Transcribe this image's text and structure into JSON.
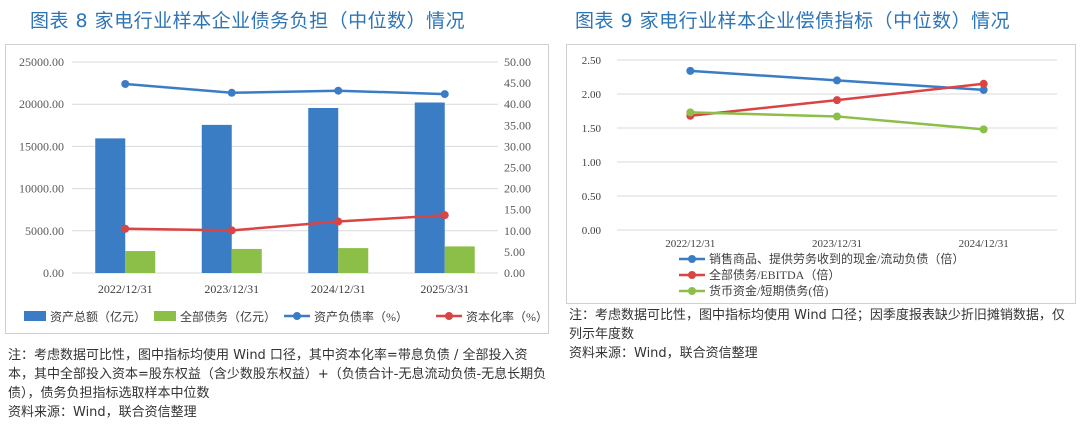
{
  "titles": {
    "left": "图表 8    家电行业样本企业债务负担（中位数）情况",
    "right": "图表 9    家电行业样本企业偿债指标（中位数）情况"
  },
  "colors": {
    "blue": "#3b7dc4",
    "green": "#8cbf48",
    "red": "#d94545",
    "title": "#2e75b6"
  },
  "chart_data": [
    {
      "type": "bar",
      "categories": [
        "2022/12/31",
        "2023/12/31",
        "2024/12/31",
        "2025/3/31"
      ],
      "series": [
        {
          "name": "资产总额（亿元）",
          "kind": "bar",
          "axis": "left",
          "color": "#3b7dc4",
          "values": [
            15950,
            17550,
            19550,
            20200
          ]
        },
        {
          "name": "全部债务（亿元）",
          "kind": "bar",
          "axis": "left",
          "color": "#8cbf48",
          "values": [
            2600,
            2850,
            2950,
            3150
          ]
        },
        {
          "name": "资产负债率（%）",
          "kind": "line",
          "axis": "right",
          "color": "#3b7dc4",
          "values": [
            44.8,
            42.7,
            43.2,
            42.4
          ]
        },
        {
          "name": "资本化率（%）",
          "kind": "line",
          "axis": "right",
          "color": "#d94545",
          "values": [
            10.5,
            10.1,
            12.2,
            13.7
          ]
        }
      ],
      "ylim_left": [
        0,
        25000
      ],
      "ylim_right": [
        0,
        50
      ],
      "yticks_left": [
        "0.00",
        "5000.00",
        "10000.00",
        "15000.00",
        "20000.00",
        "25000.00"
      ],
      "yticks_right": [
        "0.00",
        "5.00",
        "10.00",
        "15.00",
        "20.00",
        "25.00",
        "30.00",
        "35.00",
        "40.00",
        "45.00",
        "50.00"
      ],
      "legend_position": "bottom",
      "grid": true
    },
    {
      "type": "line",
      "categories": [
        "2022/12/31",
        "2023/12/31",
        "2024/12/31"
      ],
      "series": [
        {
          "name": "销售商品、提供劳务收到的现金/流动负债（倍）",
          "color": "#3b7dc4",
          "values": [
            2.34,
            2.2,
            2.06
          ]
        },
        {
          "name": "全部债务/EBITDA（倍）",
          "color": "#d94545",
          "values": [
            1.68,
            1.91,
            2.15
          ]
        },
        {
          "name": "货币资金/短期债务(倍)",
          "color": "#8cbf48",
          "values": [
            1.73,
            1.67,
            1.48
          ]
        }
      ],
      "ylim": [
        0,
        2.5
      ],
      "yticks": [
        "0.00",
        "0.50",
        "1.00",
        "1.50",
        "2.00",
        "2.50"
      ],
      "legend_position": "bottom",
      "grid": true
    }
  ],
  "notes": {
    "left": "注：考虑数据可比性，图中指标均使用 Wind 口径，其中资本化率=带息负债 / 全部投入资本，其中全部投入资本=股东权益（含少数股东权益）+（负债合计-无息流动负债-无息长期负债），债务负担指标选取样本中位数",
    "left_source": "资料来源：Wind，联合资信整理",
    "right": "注：考虑数据可比性，图中指标均使用 Wind 口径；因季度报表缺少折旧摊销数据，仅列示年度数",
    "right_source": "资料来源：Wind，联合资信整理"
  }
}
